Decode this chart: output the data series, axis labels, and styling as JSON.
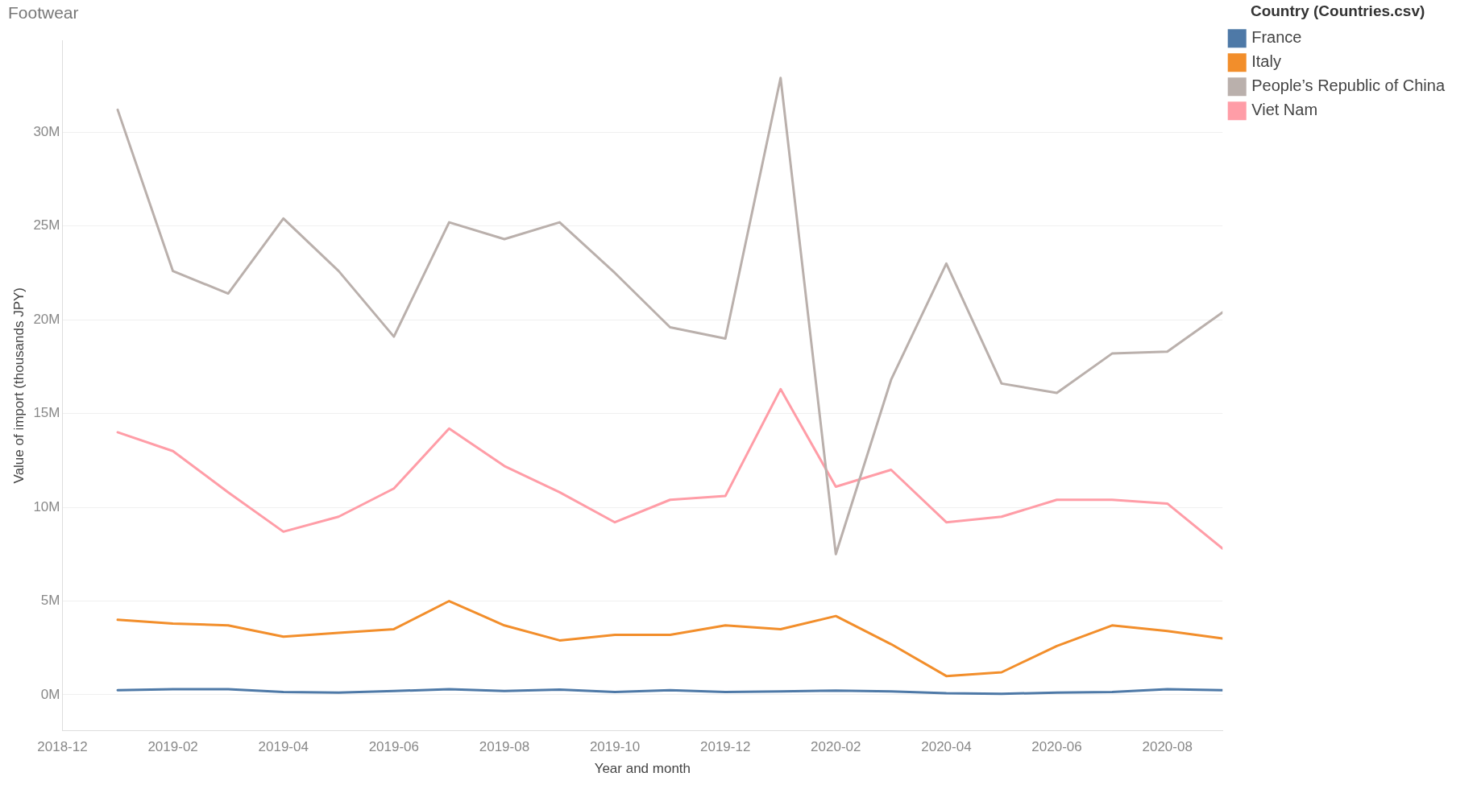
{
  "chart_data": {
    "type": "line",
    "title": "Footwear",
    "xlabel": "Year and month",
    "ylabel": "Value of import (thousands JPY)",
    "legend_title": "Country (Countries.csv)",
    "legend": "top right",
    "grid": "y",
    "x": [
      "2019-01",
      "2019-02",
      "2019-03",
      "2019-04",
      "2019-05",
      "2019-06",
      "2019-07",
      "2019-08",
      "2019-09",
      "2019-10",
      "2019-11",
      "2019-12",
      "2020-01",
      "2020-02",
      "2020-03",
      "2020-04",
      "2020-05",
      "2020-06",
      "2020-07",
      "2020-08",
      "2020-09"
    ],
    "xlim": [
      "2018-12",
      "2020-09"
    ],
    "xticks": [
      "2018-12",
      "2019-02",
      "2019-04",
      "2019-06",
      "2019-08",
      "2019-10",
      "2019-12",
      "2020-02",
      "2020-04",
      "2020-06",
      "2020-08"
    ],
    "ylim": [
      -1900000,
      34900000
    ],
    "yticks": [
      {
        "value": 0,
        "label": "0M"
      },
      {
        "value": 5000000,
        "label": "5M"
      },
      {
        "value": 10000000,
        "label": "10M"
      },
      {
        "value": 15000000,
        "label": "15M"
      },
      {
        "value": 20000000,
        "label": "20M"
      },
      {
        "value": 25000000,
        "label": "25M"
      },
      {
        "value": 30000000,
        "label": "30M"
      }
    ],
    "series": [
      {
        "name": "France",
        "color": "#4e79a7",
        "values": [
          250000,
          300000,
          300000,
          150000,
          120000,
          200000,
          300000,
          200000,
          280000,
          150000,
          250000,
          150000,
          180000,
          220000,
          180000,
          80000,
          50000,
          120000,
          150000,
          300000,
          250000
        ]
      },
      {
        "name": "Italy",
        "color": "#f28e2b",
        "values": [
          4000000,
          3800000,
          3700000,
          3100000,
          3300000,
          3500000,
          5000000,
          3700000,
          2900000,
          3200000,
          3200000,
          3700000,
          3500000,
          4200000,
          2700000,
          1000000,
          1200000,
          2600000,
          3700000,
          3400000,
          3000000
        ]
      },
      {
        "name": "People’s Republic of China",
        "color": "#bab0ac",
        "values": [
          31200000,
          22600000,
          21400000,
          25400000,
          22600000,
          19100000,
          25200000,
          24300000,
          25200000,
          22500000,
          19600000,
          19000000,
          32900000,
          7500000,
          16800000,
          23000000,
          16600000,
          16100000,
          18200000,
          18300000,
          20400000
        ]
      },
      {
        "name": "Viet Nam",
        "color": "#ff9da7",
        "values": [
          14000000,
          13000000,
          10800000,
          8700000,
          9500000,
          11000000,
          14200000,
          12200000,
          10800000,
          9200000,
          10400000,
          10600000,
          16300000,
          11100000,
          12000000,
          9200000,
          9500000,
          10400000,
          10400000,
          10200000,
          7800000
        ]
      }
    ]
  }
}
